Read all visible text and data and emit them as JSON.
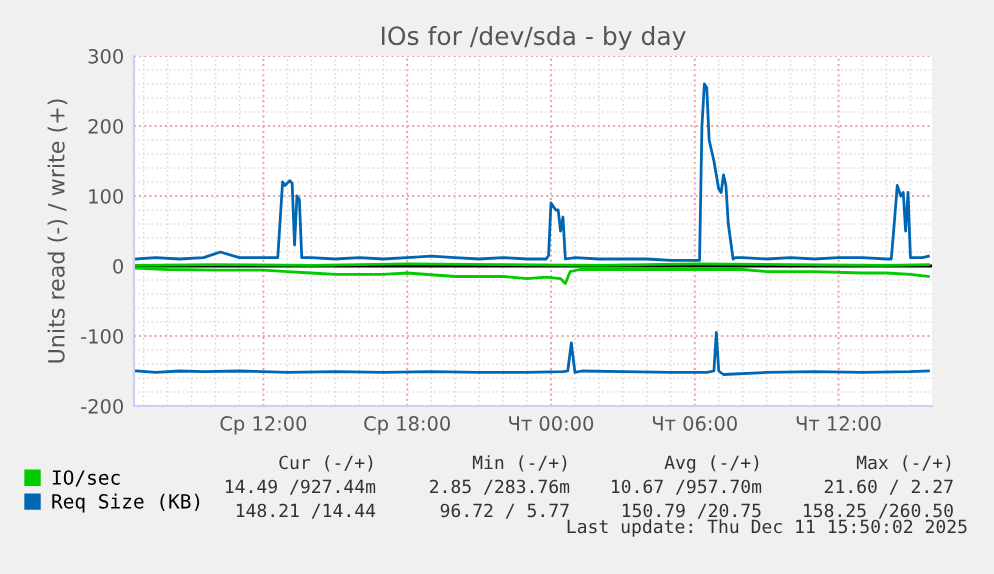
{
  "chart_data": {
    "type": "line",
    "title": "IOs for /dev/sda - by day",
    "ylabel": "Units read (-) / write (+)",
    "xlim": [
      "2025-12-10T06:36",
      "2025-12-11T15:54"
    ],
    "xticks": [
      {
        "value": "2025-12-10T12:00",
        "label": "Ср 12:00"
      },
      {
        "value": "2025-12-10T18:00",
        "label": "Ср 18:00"
      },
      {
        "value": "2025-12-11T00:00",
        "label": "Чт 00:00"
      },
      {
        "value": "2025-12-11T06:00",
        "label": "Чт 06:00"
      },
      {
        "value": "2025-12-11T12:00",
        "label": "Чт 12:00"
      }
    ],
    "ylim": [
      -200,
      300
    ],
    "yticks": [
      -200,
      -100,
      0,
      100,
      200,
      300
    ],
    "grid": true,
    "legend": "bottom",
    "ref_lines": [
      {
        "axis": "y",
        "value": 0,
        "color": "#000000"
      }
    ],
    "series": [
      {
        "name": "IO/sec",
        "color": "#00cc00",
        "x": [
          "2025-12-10T06:42",
          "2025-12-10T10:00",
          "2025-12-10T14:00",
          "2025-12-10T18:00",
          "2025-12-10T22:00",
          "2025-12-11T02:00",
          "2025-12-11T06:00",
          "2025-12-11T10:00",
          "2025-12-11T14:00",
          "2025-12-11T15:45"
        ],
        "values": [
          1,
          2,
          1,
          3,
          2,
          1,
          3,
          2,
          1,
          2
        ]
      },
      {
        "color": "#00cc00",
        "x": [
          "2025-12-10T06:42",
          "2025-12-10T08:00",
          "2025-12-10T10:00",
          "2025-12-10T12:00",
          "2025-12-10T13:00",
          "2025-12-10T14:00",
          "2025-12-10T15:00",
          "2025-12-10T17:00",
          "2025-12-10T18:00",
          "2025-12-10T20:00",
          "2025-12-10T22:00",
          "2025-12-10T23:00",
          "2025-12-10T23:48",
          "2025-12-11T00:24",
          "2025-12-11T00:36",
          "2025-12-11T00:48",
          "2025-12-11T01:12",
          "2025-12-11T03:00",
          "2025-12-11T06:00",
          "2025-12-11T08:00",
          "2025-12-11T09:00",
          "2025-12-11T11:00",
          "2025-12-11T13:00",
          "2025-12-11T14:00",
          "2025-12-11T15:00",
          "2025-12-11T15:45"
        ],
        "values": [
          -3,
          -5,
          -6,
          -6,
          -8,
          -10,
          -12,
          -12,
          -10,
          -15,
          -15,
          -18,
          -16,
          -18,
          -25,
          -8,
          -5,
          -5,
          -5,
          -5,
          -8,
          -8,
          -10,
          -10,
          -12,
          -15
        ]
      },
      {
        "name": "Req Size (KB)",
        "color": "#0066b3",
        "x": [
          "2025-12-10T06:42",
          "2025-12-10T07:30",
          "2025-12-10T08:30",
          "2025-12-10T09:30",
          "2025-12-10T10:12",
          "2025-12-10T11:00",
          "2025-12-10T12:00",
          "2025-12-10T12:36",
          "2025-12-10T12:48",
          "2025-12-10T12:54",
          "2025-12-10T13:06",
          "2025-12-10T13:12",
          "2025-12-10T13:18",
          "2025-12-10T13:24",
          "2025-12-10T13:30",
          "2025-12-10T13:36",
          "2025-12-10T14:00",
          "2025-12-10T15:00",
          "2025-12-10T16:00",
          "2025-12-10T17:00",
          "2025-12-10T18:00",
          "2025-12-10T19:00",
          "2025-12-10T20:00",
          "2025-12-10T21:00",
          "2025-12-10T22:00",
          "2025-12-10T23:00",
          "2025-12-10T23:48",
          "2025-12-10T23:54",
          "2025-12-11T00:00",
          "2025-12-11T00:12",
          "2025-12-11T00:18",
          "2025-12-11T00:24",
          "2025-12-11T00:30",
          "2025-12-11T00:36",
          "2025-12-11T01:00",
          "2025-12-11T02:00",
          "2025-12-11T03:00",
          "2025-12-11T04:00",
          "2025-12-11T05:00",
          "2025-12-11T06:12",
          "2025-12-11T06:18",
          "2025-12-11T06:24",
          "2025-12-11T06:30",
          "2025-12-11T06:36",
          "2025-12-11T06:48",
          "2025-12-11T07:00",
          "2025-12-11T07:06",
          "2025-12-11T07:12",
          "2025-12-11T07:18",
          "2025-12-11T07:24",
          "2025-12-11T07:36",
          "2025-12-11T07:42",
          "2025-12-11T08:00",
          "2025-12-11T09:00",
          "2025-12-11T10:00",
          "2025-12-11T11:00",
          "2025-12-11T12:00",
          "2025-12-11T13:00",
          "2025-12-11T14:00",
          "2025-12-11T14:12",
          "2025-12-11T14:18",
          "2025-12-11T14:27",
          "2025-12-11T14:36",
          "2025-12-11T14:42",
          "2025-12-11T14:48",
          "2025-12-11T14:54",
          "2025-12-11T15:00",
          "2025-12-11T15:06",
          "2025-12-11T15:30",
          "2025-12-11T15:45"
        ],
        "values": [
          10,
          12,
          10,
          12,
          20,
          12,
          12,
          12,
          120,
          115,
          122,
          118,
          30,
          100,
          95,
          12,
          12,
          10,
          12,
          10,
          12,
          14,
          12,
          10,
          12,
          10,
          10,
          15,
          90,
          80,
          80,
          50,
          70,
          10,
          12,
          10,
          10,
          10,
          8,
          8,
          200,
          260,
          255,
          180,
          150,
          110,
          105,
          130,
          115,
          60,
          10,
          12,
          12,
          10,
          12,
          10,
          12,
          12,
          10,
          10,
          50,
          115,
          100,
          105,
          50,
          105,
          12,
          12,
          12,
          14
        ]
      },
      {
        "color": "#0066b3",
        "x": [
          "2025-12-10T06:42",
          "2025-12-10T07:30",
          "2025-12-10T08:30",
          "2025-12-10T09:30",
          "2025-12-10T11:00",
          "2025-12-10T13:00",
          "2025-12-10T15:00",
          "2025-12-10T17:00",
          "2025-12-10T19:00",
          "2025-12-10T21:00",
          "2025-12-10T23:00",
          "2025-12-11T00:30",
          "2025-12-11T00:42",
          "2025-12-11T00:51",
          "2025-12-11T01:00",
          "2025-12-11T01:18",
          "2025-12-11T03:00",
          "2025-12-11T05:00",
          "2025-12-11T06:30",
          "2025-12-11T06:48",
          "2025-12-11T06:54",
          "2025-12-11T07:00",
          "2025-12-11T07:12",
          "2025-12-11T09:00",
          "2025-12-11T11:00",
          "2025-12-11T13:00",
          "2025-12-11T15:00",
          "2025-12-11T15:45"
        ],
        "values": [
          -150,
          -152,
          -150,
          -151,
          -150,
          -152,
          -151,
          -152,
          -151,
          -152,
          -152,
          -151,
          -150,
          -110,
          -152,
          -150,
          -151,
          -152,
          -152,
          -150,
          -95,
          -150,
          -155,
          -152,
          -151,
          -152,
          -151,
          -150
        ]
      }
    ],
    "annotations": [
      "Cur (-/+)",
      "Min (-/+)",
      "Avg (-/+)",
      "Max (-/+)",
      "14.49 /927.44m",
      "2.85 /283.76m",
      "10.67 /957.70m",
      "21.60 / 2.27",
      "148.21 /14.44",
      "96.72 / 5.77",
      "150.79 /20.75",
      "158.25 /260.50",
      "Last update: Thu Dec 11 15:50:02 2025"
    ]
  }
}
